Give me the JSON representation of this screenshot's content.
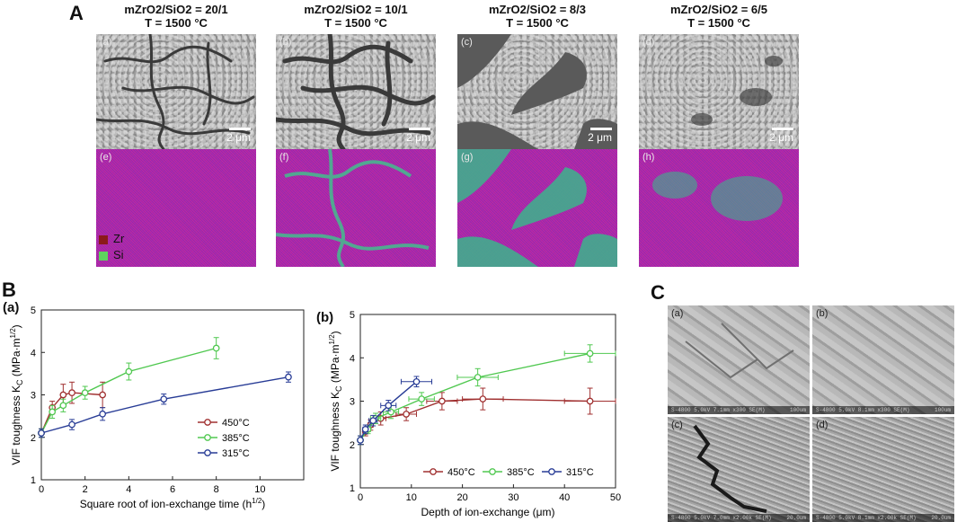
{
  "panelA": {
    "letter": "A",
    "columns": [
      {
        "title1": "mZrO2/SiO2 = 20/1",
        "title2": "T = 1500 °C",
        "sem_label": "(a)",
        "map_label": "(e)",
        "scale": "2 μm"
      },
      {
        "title1": "mZrO2/SiO2 = 10/1",
        "title2": "T = 1500 °C",
        "sem_label": "(b)",
        "map_label": "(f)",
        "scale": "2 μm"
      },
      {
        "title1": "mZrO2/SiO2 = 8/3",
        "title2": "T = 1500 °C",
        "sem_label": "(c)",
        "map_label": "(g)",
        "scale": "2 μm"
      },
      {
        "title1": "mZrO2/SiO2 = 6/5",
        "title2": "T = 1500 °C",
        "sem_label": "(d)",
        "map_label": "(h)",
        "scale": "2 μm"
      }
    ],
    "legend": [
      {
        "label": "Zr",
        "color": "#8b1a1a"
      },
      {
        "label": "Si",
        "color": "#5fd35f"
      }
    ]
  },
  "panelB": {
    "letter": "B"
  },
  "panelC": {
    "letter": "C",
    "images": [
      {
        "label": "(a)",
        "footer": "S-4800 5.0kV 7.1mm x300 SE(M)",
        "scale": "100um"
      },
      {
        "label": "(b)",
        "footer": "S-4800 5.0kV 8.1mm x300 SE(M)",
        "scale": "100um"
      },
      {
        "label": "(c)",
        "footer": "S-4800 5.0kV 7.0mm x2.00k SE(M)",
        "scale": "20.0um"
      },
      {
        "label": "(d)",
        "footer": "S-4800 5.0kV 8.1mm x2.00k SE(M)",
        "scale": "20.0um"
      }
    ]
  },
  "colors": {
    "c450": "#a03030",
    "c385": "#50c850",
    "c315": "#283c96"
  },
  "chart_data": [
    {
      "type": "line",
      "panel_label": "(a)",
      "xlabel": "Square root of ion-exchange time (h",
      "xlabel_sup": "1/2",
      "xlabel_end": ")",
      "ylabel": "VIF toughness K",
      "ylabel_sub": "C",
      "ylabel_units": " (MPa·m",
      "ylabel_sup": "1/2",
      "ylabel_end": ")",
      "xlim": [
        0,
        12
      ],
      "ylim": [
        1,
        5
      ],
      "xticks": [
        0,
        2,
        4,
        6,
        8,
        10
      ],
      "yticks": [
        1,
        2,
        3,
        4,
        5
      ],
      "legend_position": "bottom-right",
      "series": [
        {
          "name": "450°C",
          "color": "#a03030",
          "x": [
            0,
            0.5,
            1,
            1.4,
            2.8
          ],
          "y": [
            2.1,
            2.7,
            3.0,
            3.05,
            3.0
          ],
          "err": [
            0.1,
            0.15,
            0.25,
            0.25,
            0.3
          ]
        },
        {
          "name": "385°C",
          "color": "#50c850",
          "x": [
            0,
            0.5,
            1,
            2,
            4,
            8
          ],
          "y": [
            2.1,
            2.6,
            2.75,
            3.05,
            3.55,
            4.1
          ],
          "err": [
            0.1,
            0.15,
            0.15,
            0.15,
            0.2,
            0.25
          ]
        },
        {
          "name": "315°C",
          "color": "#283c96",
          "x": [
            0,
            1.4,
            2.8,
            5.6,
            11.3
          ],
          "y": [
            2.1,
            2.3,
            2.55,
            2.9,
            3.42
          ],
          "err": [
            0.1,
            0.12,
            0.15,
            0.12,
            0.12
          ]
        }
      ]
    },
    {
      "type": "line",
      "panel_label": "(b)",
      "xlabel": "Depth of ion-exchange (μm)",
      "ylabel": "VIF toughness K",
      "ylabel_sub": "C",
      "ylabel_units": " (MPa·m",
      "ylabel_sup": "1/2",
      "ylabel_end": ")",
      "xlim": [
        0,
        50
      ],
      "ylim": [
        1,
        5
      ],
      "xticks": [
        0,
        10,
        20,
        30,
        40,
        50
      ],
      "yticks": [
        1,
        2,
        3,
        4,
        5
      ],
      "legend_position": "bottom",
      "series": [
        {
          "name": "450°C",
          "color": "#a03030",
          "x": [
            0,
            1,
            2,
            4,
            9,
            16,
            24,
            45
          ],
          "y": [
            2.1,
            2.3,
            2.45,
            2.6,
            2.7,
            3.0,
            3.05,
            3.0
          ],
          "err": [
            0.1,
            0.1,
            0.12,
            0.15,
            0.15,
            0.2,
            0.25,
            0.3
          ],
          "xerr": [
            0,
            0.5,
            0.5,
            1,
            2,
            3,
            4,
            5
          ]
        },
        {
          "name": "385°C",
          "color": "#50c850",
          "x": [
            0,
            1.5,
            3,
            6,
            12,
            23,
            45
          ],
          "y": [
            2.1,
            2.35,
            2.6,
            2.75,
            3.05,
            3.55,
            4.1
          ],
          "err": [
            0.1,
            0.1,
            0.12,
            0.15,
            0.15,
            0.2,
            0.2
          ],
          "xerr": [
            0,
            0.5,
            1,
            1.5,
            2.5,
            4,
            5
          ]
        },
        {
          "name": "315°C",
          "color": "#283c96",
          "x": [
            0,
            1,
            2.5,
            5.5,
            11
          ],
          "y": [
            2.1,
            2.35,
            2.55,
            2.9,
            3.45
          ],
          "err": [
            0.1,
            0.1,
            0.12,
            0.12,
            0.12
          ],
          "xerr": [
            0,
            0.5,
            0.8,
            1.5,
            3
          ]
        }
      ]
    }
  ]
}
